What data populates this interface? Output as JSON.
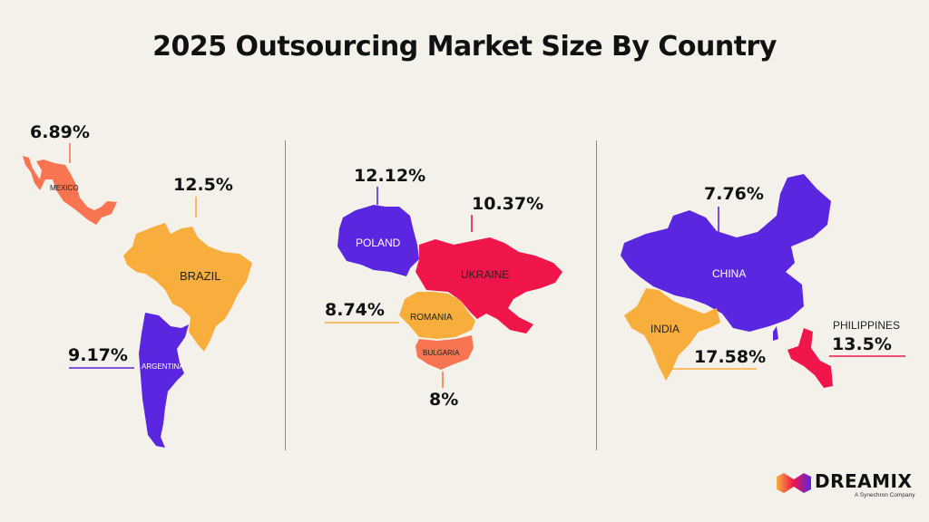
{
  "title": "2025 Outsourcing Market Size By Country",
  "colors": {
    "background": "#f4f1eb",
    "orange": "#f97450",
    "yellow": "#f8ae3c",
    "purple": "#5b26e0",
    "red": "#f0154a"
  },
  "countries": [
    {
      "name": "MEXICO",
      "value": "6.89%",
      "color": "#f97450"
    },
    {
      "name": "BRAZIL",
      "value": "12.5%",
      "color": "#f8ae3c"
    },
    {
      "name": "ARGENTINA",
      "value": "9.17%",
      "color": "#5b26e0"
    },
    {
      "name": "POLAND",
      "value": "12.12%",
      "color": "#5b26e0"
    },
    {
      "name": "UKRAINE",
      "value": "10.37%",
      "color": "#f0154a"
    },
    {
      "name": "ROMANIA",
      "value": "8.74%",
      "color": "#f8ae3c"
    },
    {
      "name": "BULGARIA",
      "value": "8%",
      "color": "#f97450"
    },
    {
      "name": "CHINA",
      "value": "7.76%",
      "color": "#5b26e0"
    },
    {
      "name": "INDIA",
      "value": "17.58%",
      "color": "#f8ae3c"
    },
    {
      "name": "PHILIPPINES",
      "value": "13.5%",
      "color": "#f0154a"
    }
  ],
  "logo": {
    "name": "DREAMIX",
    "tagline": "A Synechron Company"
  }
}
